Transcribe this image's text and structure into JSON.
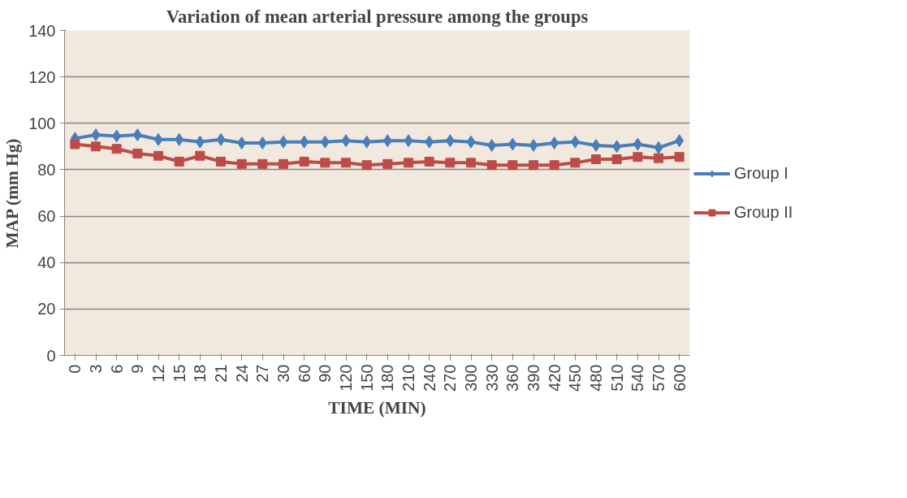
{
  "chart_data": {
    "type": "line",
    "title": "Variation of mean arterial pressure among the groups",
    "xlabel": "TIME (MIN)",
    "ylabel": "MAP (mm Hg)",
    "categories": [
      "0",
      "3",
      "6",
      "9",
      "12",
      "15",
      "18",
      "21",
      "24",
      "27",
      "30",
      "60",
      "90",
      "120",
      "150",
      "180",
      "210",
      "240",
      "270",
      "300",
      "330",
      "360",
      "390",
      "420",
      "450",
      "480",
      "510",
      "540",
      "570",
      "600"
    ],
    "series": [
      {
        "name": "Group I",
        "color": "#4a7ebb",
        "marker": "diamond",
        "values": [
          93.5,
          95,
          94.5,
          95,
          93,
          93,
          92,
          93,
          91.5,
          91.5,
          92,
          92,
          92,
          92.5,
          92,
          92.5,
          92.5,
          92,
          92.5,
          92,
          90.5,
          91,
          90.5,
          91.5,
          92,
          90.5,
          90,
          91,
          89.5,
          92.5
        ]
      },
      {
        "name": "Group II",
        "color": "#be4b48",
        "marker": "square",
        "values": [
          91,
          90,
          89,
          87,
          86,
          83.5,
          86,
          83.5,
          82.5,
          82.5,
          82.5,
          83.5,
          83,
          83,
          82,
          82.5,
          83,
          83.5,
          83,
          83,
          82,
          82,
          82,
          82,
          83,
          84.5,
          84.5,
          85.5,
          85,
          85.5
        ]
      }
    ],
    "ylim": [
      0,
      140
    ],
    "yticks": [
      0,
      20,
      40,
      60,
      80,
      100,
      120,
      140
    ],
    "grid": "y",
    "legend": "right"
  }
}
